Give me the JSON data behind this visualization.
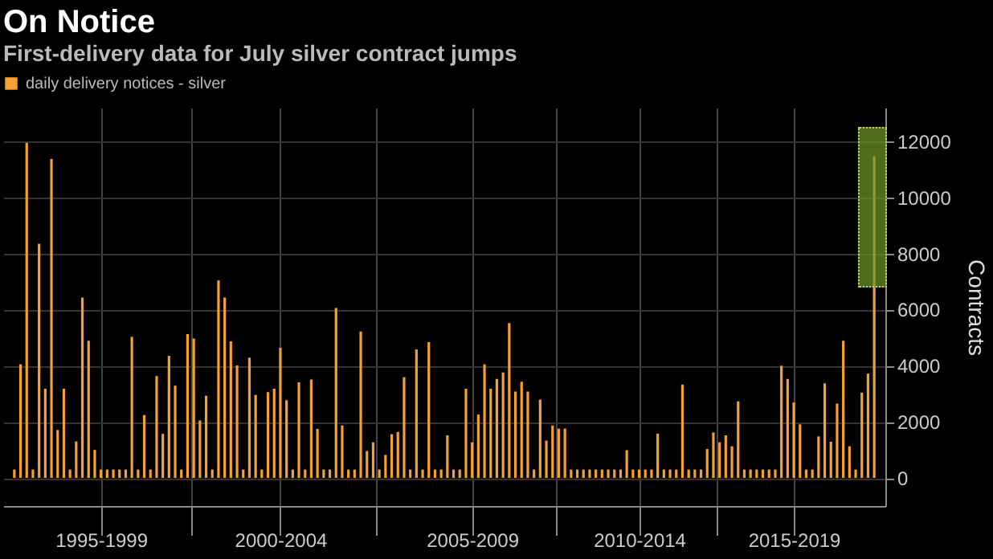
{
  "chart_data": {
    "type": "bar",
    "title": "On Notice",
    "subtitle": "First-delivery data for July silver contract jumps",
    "ylabel": "Contracts",
    "categories": [
      null,
      null,
      null,
      null,
      null,
      null,
      null,
      null,
      null,
      null,
      null,
      null,
      null,
      null,
      "1995-1999",
      null,
      null,
      null,
      null,
      null,
      null,
      null,
      null,
      null,
      null,
      null,
      null,
      null,
      null,
      null,
      null,
      null,
      null,
      null,
      null,
      null,
      null,
      null,
      null,
      null,
      null,
      null,
      null,
      "2000-2004",
      null,
      null,
      null,
      null,
      null,
      null,
      null,
      null,
      null,
      null,
      null,
      null,
      null,
      null,
      null,
      null,
      null,
      null,
      null,
      null,
      null,
      null,
      null,
      null,
      null,
      null,
      null,
      null,
      null,
      null,
      "2005-2009",
      null,
      null,
      null,
      null,
      null,
      null,
      null,
      null,
      null,
      null,
      null,
      null,
      null,
      null,
      null,
      null,
      null,
      null,
      null,
      null,
      null,
      null,
      null,
      null,
      null,
      null,
      "2010-2014",
      null,
      null,
      null,
      null,
      null,
      null,
      null,
      null,
      null,
      null,
      null,
      null,
      null,
      null,
      null,
      null,
      null,
      null,
      null,
      null,
      null,
      null,
      null,
      null,
      "2015-2019",
      null,
      null,
      null,
      null,
      null,
      null,
      null,
      null,
      null,
      null,
      null,
      null,
      null
    ],
    "series": [
      {
        "name": "daily delivery notices - silver",
        "color": "#f5a033",
        "values": [
          300,
          4050,
          11950,
          300,
          8350,
          3180,
          11370,
          1710,
          3180,
          300,
          1300,
          6430,
          4890,
          1000,
          300,
          300,
          300,
          300,
          300,
          5030,
          300,
          2240,
          300,
          3630,
          1570,
          4350,
          3290,
          300,
          5130,
          4970,
          2050,
          2930,
          300,
          7040,
          6430,
          4870,
          4010,
          300,
          4290,
          2960,
          300,
          3060,
          3180,
          4640,
          2770,
          300,
          3410,
          300,
          3510,
          1750,
          300,
          300,
          6060,
          1870,
          300,
          300,
          5220,
          960,
          1270,
          300,
          820,
          1560,
          1640,
          3590,
          300,
          4580,
          300,
          4840,
          300,
          300,
          1520,
          300,
          300,
          3180,
          1270,
          2260,
          4050,
          3180,
          3530,
          3760,
          5520,
          3080,
          3430,
          3080,
          300,
          2790,
          1330,
          1870,
          1760,
          1760,
          300,
          300,
          300,
          300,
          300,
          300,
          300,
          300,
          300,
          990,
          300,
          300,
          300,
          300,
          1580,
          300,
          300,
          300,
          3330,
          300,
          300,
          300,
          1030,
          1620,
          1270,
          1520,
          1130,
          2730,
          300,
          300,
          300,
          300,
          300,
          300,
          4000,
          3530,
          2690,
          1910,
          300,
          300,
          1480,
          3370,
          1290,
          2650,
          4890,
          1130,
          300,
          3040,
          3720,
          11470
        ]
      }
    ],
    "ylim": [
      -1000,
      13200
    ],
    "yticks": [
      0,
      2000,
      4000,
      6000,
      8000,
      10000,
      12000
    ],
    "grid": true,
    "legend": "top left"
  }
}
